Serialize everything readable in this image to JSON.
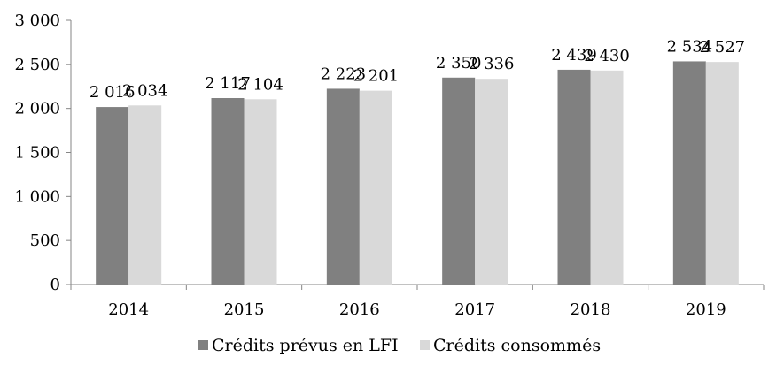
{
  "chart_data": {
    "type": "bar",
    "title": "",
    "xlabel": "",
    "ylabel": "",
    "categories": [
      "2014",
      "2015",
      "2016",
      "2017",
      "2018",
      "2019"
    ],
    "series": [
      {
        "name": "Crédits prévus en LFI",
        "color": "#808080",
        "values": [
          2016,
          2117,
          2223,
          2350,
          2439,
          2534
        ],
        "labels": [
          "2 016",
          "2 117",
          "2 223",
          "2 350",
          "2 439",
          "2 534"
        ]
      },
      {
        "name": "Crédits consommés",
        "color": "#d9d9d9",
        "values": [
          2034,
          2104,
          2201,
          2336,
          2430,
          2527
        ],
        "labels": [
          "2 034",
          "2 104",
          "2 201",
          "2 336",
          "2 430",
          "2 527"
        ]
      }
    ],
    "ylim": [
      0,
      3000
    ],
    "yticks": [
      0,
      500,
      1000,
      1500,
      2000,
      2500,
      3000
    ],
    "ytick_labels": [
      "0",
      "500",
      "1 000",
      "1 500",
      "2 000",
      "2 500",
      "3 000"
    ],
    "grid": false,
    "legend_position": "bottom"
  }
}
